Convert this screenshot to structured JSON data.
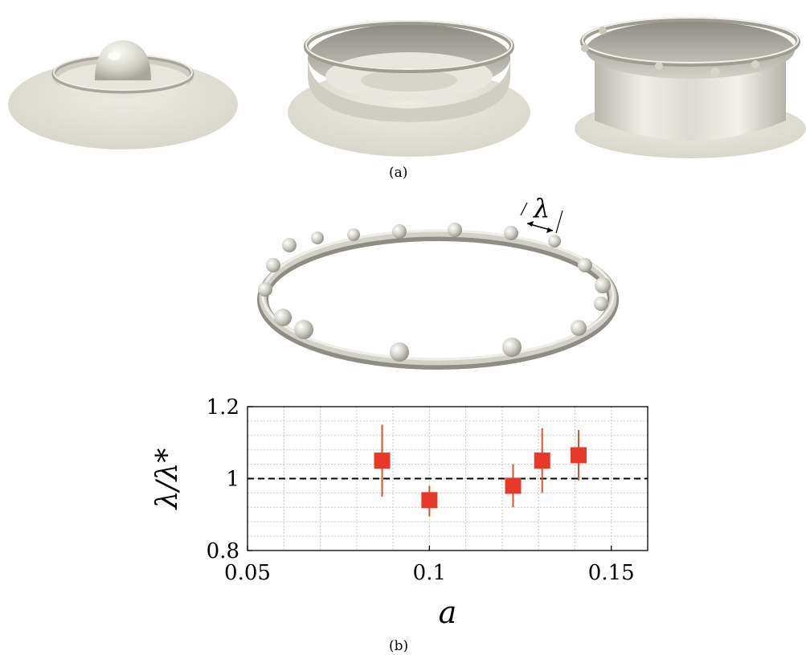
{
  "figure": {
    "caption_a": "(a)",
    "caption_b": "(b)",
    "wavelength_symbol": "λ"
  },
  "chart_data": {
    "type": "scatter",
    "xlabel": "a",
    "ylabel": "λ/λ*",
    "xlim": [
      0.05,
      0.16
    ],
    "ylim": [
      0.8,
      1.2
    ],
    "xticks": [
      0.05,
      0.1,
      0.15
    ],
    "xtick_labels": [
      "0.05",
      "0.1",
      "0.15"
    ],
    "yticks": [
      0.8,
      1,
      1.2
    ],
    "ytick_labels": [
      "0.8",
      "1",
      "1.2"
    ],
    "grid": true,
    "reference_line": {
      "y": 1,
      "style": "dashed"
    },
    "marker_color": "#e8382a",
    "errorbar_color": "#d4552b",
    "points": [
      {
        "x": 0.087,
        "y": 1.05,
        "err_low": 0.95,
        "err_high": 1.15
      },
      {
        "x": 0.1,
        "y": 0.94,
        "err_low": 0.895,
        "err_high": 0.98
      },
      {
        "x": 0.123,
        "y": 0.98,
        "err_low": 0.92,
        "err_high": 1.04
      },
      {
        "x": 0.131,
        "y": 1.05,
        "err_low": 0.96,
        "err_high": 1.14
      },
      {
        "x": 0.141,
        "y": 1.065,
        "err_low": 0.995,
        "err_high": 1.135
      }
    ]
  }
}
